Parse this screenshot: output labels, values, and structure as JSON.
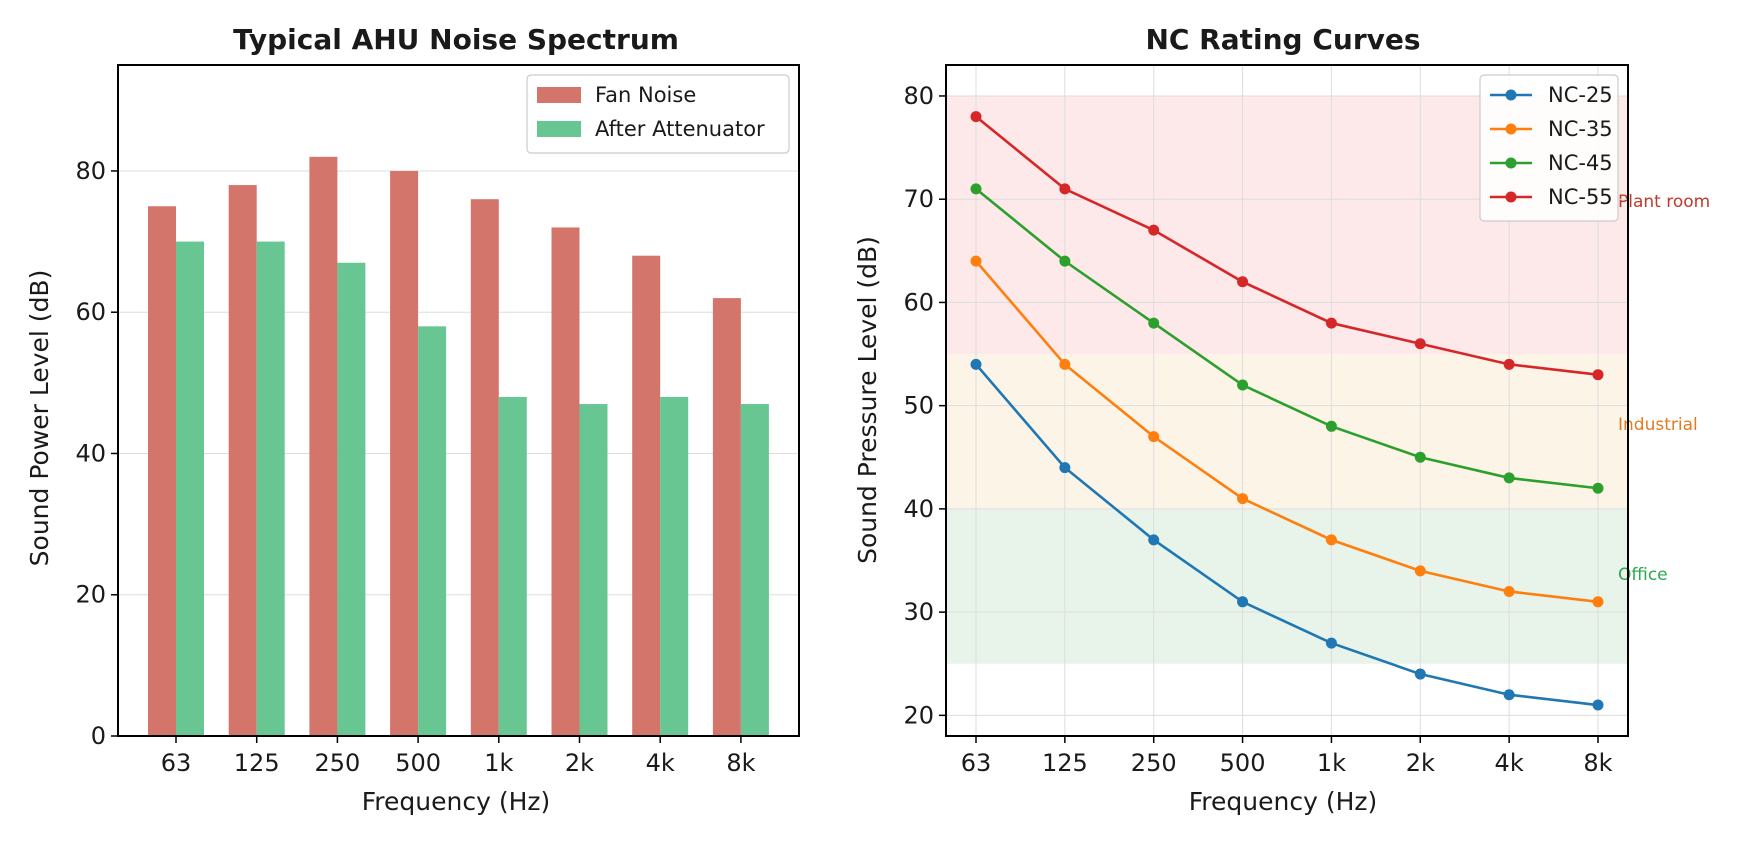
{
  "chart_data": [
    {
      "type": "bar",
      "title": "Typical AHU Noise Spectrum",
      "xlabel": "Frequency (Hz)",
      "ylabel": "Sound Power Level (dB)",
      "categories": [
        "63",
        "125",
        "250",
        "500",
        "1k",
        "2k",
        "4k",
        "8k"
      ],
      "ylim": [
        0,
        95
      ],
      "yticks": [
        0,
        20,
        40,
        60,
        80
      ],
      "grid": "y",
      "legend_position": "top-right",
      "series": [
        {
          "name": "Fan Noise",
          "color": "#d4756b",
          "values": [
            75,
            78,
            82,
            80,
            76,
            72,
            68,
            62
          ]
        },
        {
          "name": "After Attenuator",
          "color": "#68c693",
          "values": [
            70,
            70,
            67,
            58,
            48,
            47,
            48,
            47
          ]
        }
      ]
    },
    {
      "type": "line",
      "title": "NC Rating Curves",
      "xlabel": "Frequency (Hz)",
      "ylabel": "Sound Pressure Level (dB)",
      "categories": [
        "63",
        "125",
        "250",
        "500",
        "1k",
        "2k",
        "4k",
        "8k"
      ],
      "ylim": [
        18,
        83
      ],
      "yticks": [
        20,
        30,
        40,
        50,
        60,
        70,
        80
      ],
      "grid": "both",
      "legend_position": "top-right",
      "series": [
        {
          "name": "NC-25",
          "color": "#1f77b4",
          "values": [
            54,
            44,
            37,
            31,
            27,
            24,
            22,
            21
          ]
        },
        {
          "name": "NC-35",
          "color": "#ff7f0e",
          "values": [
            64,
            54,
            47,
            41,
            37,
            34,
            32,
            31
          ]
        },
        {
          "name": "NC-45",
          "color": "#2ca02c",
          "values": [
            71,
            64,
            58,
            52,
            48,
            45,
            43,
            42
          ]
        },
        {
          "name": "NC-55",
          "color": "#d62728",
          "values": [
            78,
            71,
            67,
            62,
            58,
            56,
            54,
            53
          ]
        }
      ],
      "bands": [
        {
          "label": "Office",
          "from": 25,
          "to": 40,
          "fill": "#e8f3ea",
          "label_color": "#2ca84f"
        },
        {
          "label": "Industrial",
          "from": 40,
          "to": 55,
          "fill": "#fdf4e8",
          "label_color": "#e07b22"
        },
        {
          "label": "Plant room",
          "from": 55,
          "to": 80,
          "fill": "#fde8ea",
          "label_color": "#c0392b"
        }
      ]
    }
  ]
}
